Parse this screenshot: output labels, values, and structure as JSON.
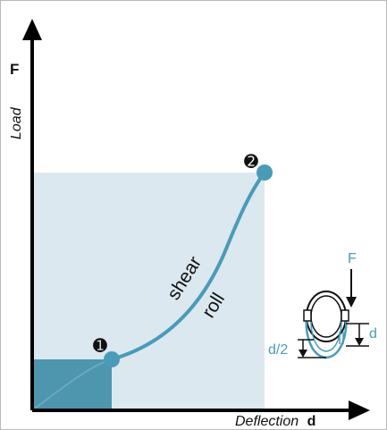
{
  "axes": {
    "y_symbol": "F",
    "y_label": "Load",
    "x_label": "Deflection",
    "x_symbol": "d"
  },
  "points": [
    {
      "marker": "➊",
      "name": "point-1"
    },
    {
      "marker": "➋",
      "name": "point-2"
    }
  ],
  "curve_labels": {
    "upper": "shear",
    "lower": "roll"
  },
  "inset": {
    "force": "F",
    "deflection": "d",
    "half_deflection": "d/2"
  },
  "colors": {
    "curve": "#4a9bb8",
    "large_area": "#dbe8ef",
    "small_area": "#4e96ad",
    "axes": "#000000"
  }
}
